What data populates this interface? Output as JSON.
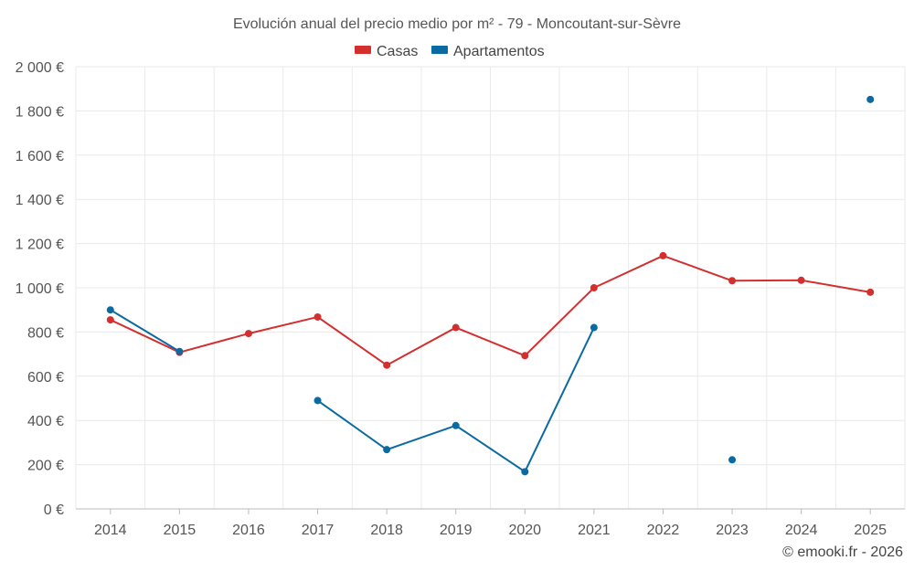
{
  "chart_data": {
    "type": "line",
    "title": "Evolución anual del precio medio por m² - 79 - Moncoutant-sur-Sèvre",
    "categories": [
      "2014",
      "2015",
      "2016",
      "2017",
      "2018",
      "2019",
      "2020",
      "2021",
      "2022",
      "2023",
      "2024",
      "2025"
    ],
    "ylim": [
      0,
      2000
    ],
    "ytick_values": [
      0,
      200,
      400,
      600,
      800,
      1000,
      1200,
      1400,
      1600,
      1800,
      2000
    ],
    "ytick_labels": [
      "0 €",
      "200 €",
      "400 €",
      "600 €",
      "800 €",
      "1 000 €",
      "1 200 €",
      "1 400 €",
      "1 600 €",
      "1 800 €",
      "2 000 €"
    ],
    "grid": true,
    "legend_position": "top-center",
    "series": [
      {
        "name": "Casas",
        "color": "#d32f2f",
        "values": [
          855,
          708,
          793,
          868,
          650,
          820,
          693,
          1000,
          1145,
          1032,
          1034,
          980
        ]
      },
      {
        "name": "Apartamentos",
        "color": "#0a6aa1",
        "values": [
          900,
          712,
          null,
          490,
          268,
          377,
          168,
          820,
          null,
          222,
          null,
          1852
        ]
      }
    ],
    "credit": "© emooki.fr - 2026"
  }
}
